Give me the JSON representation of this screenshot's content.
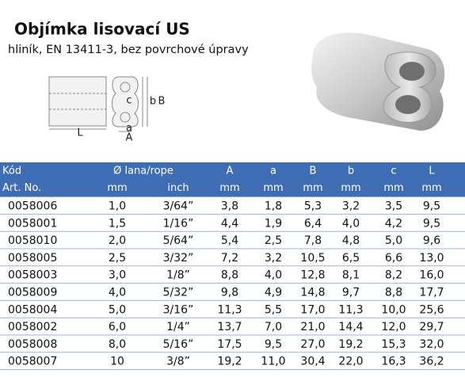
{
  "header": {
    "title": "Objímka lisovací US",
    "subtitle": "hliník, EN 13411-3, bez povrchové úpravy"
  },
  "diagram": {
    "labels": [
      "c",
      "b",
      "B",
      "L",
      "a",
      "A"
    ]
  },
  "table": {
    "header_row1": [
      "Kód",
      "Ø lana/rope",
      "A",
      "a",
      "B",
      "b",
      "c",
      "L"
    ],
    "header_row2": [
      "Art. No.",
      "mm",
      "inch",
      "mm",
      "mm",
      "mm",
      "mm",
      "mm",
      "mm"
    ],
    "rows": [
      [
        "0058006",
        "1,0",
        "3/64”",
        "3,8",
        "1,8",
        "5,3",
        "3,2",
        "3,5",
        "9,5"
      ],
      [
        "0058001",
        "1,5",
        "1/16”",
        "4,4",
        "1,9",
        "6,4",
        "4,0",
        "4,2",
        "9,5"
      ],
      [
        "0058010",
        "2,0",
        "5/64”",
        "5,4",
        "2,5",
        "7,8",
        "4,8",
        "5,0",
        "9,6"
      ],
      [
        "0058005",
        "2,5",
        "3/32”",
        "7,2",
        "3,2",
        "10,5",
        "6,5",
        "6,6",
        "13,0"
      ],
      [
        "0058003",
        "3,0",
        "1/8”",
        "8,8",
        "4,0",
        "12,8",
        "8,1",
        "8,2",
        "16,0"
      ],
      [
        "0058009",
        "4,0",
        "5/32”",
        "9,8",
        "4,9",
        "14,8",
        "9,7",
        "8,8",
        "17,7"
      ],
      [
        "0058004",
        "5,0",
        "3/16”",
        "11,3",
        "5,5",
        "17,0",
        "11,3",
        "10,0",
        "25,6"
      ],
      [
        "0058002",
        "6,0",
        "1/4”",
        "13,7",
        "7,0",
        "21,0",
        "14,4",
        "12,0",
        "29,7"
      ],
      [
        "0058008",
        "8,0",
        "5/16”",
        "17,5",
        "9,5",
        "27,0",
        "19,2",
        "15,3",
        "32,0"
      ],
      [
        "0058007",
        "10",
        "3/8”",
        "19,2",
        "11,0",
        "30,4",
        "22,0",
        "16,3",
        "36,2"
      ]
    ]
  }
}
